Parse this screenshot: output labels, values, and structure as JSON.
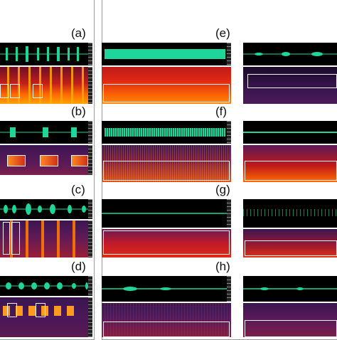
{
  "panels": {
    "a": "(a)",
    "b": "(b)",
    "c": "(c)",
    "d": "(d)",
    "e": "(e)",
    "f": "(f)",
    "g": "(g)",
    "h": "(h)"
  },
  "colors": {
    "waveform": "#1fd69a",
    "background": "#000000",
    "spec_hot": "#ff6a00",
    "spec_warm": "#e0201a",
    "spec_cool": "#3a1650",
    "box": "#f2f2f2"
  },
  "icons": {
    "waveform": "waveform-icon",
    "spectrogram": "spectrogram-icon"
  }
}
